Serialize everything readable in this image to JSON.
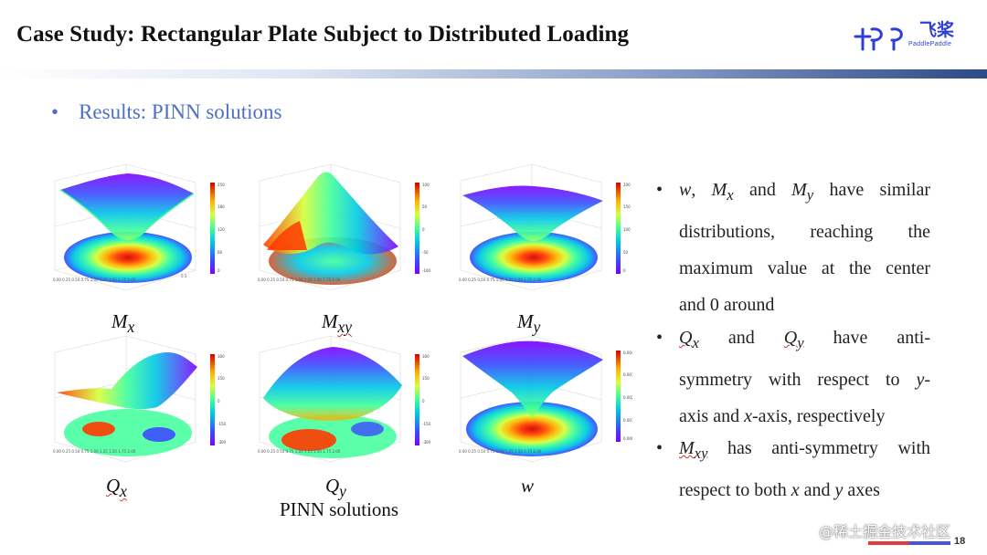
{
  "title": "Case Study: Rectangular Plate Subject to Distributed Loading",
  "logo": {
    "cn": "飞桨",
    "en": "PaddlePaddle"
  },
  "section": {
    "bullet": "•",
    "heading": "Results: PINN solutions"
  },
  "plots": [
    {
      "id": "Mx",
      "label": "M",
      "sub": "x"
    },
    {
      "id": "Mxy",
      "label": "M",
      "sub": "xy"
    },
    {
      "id": "My",
      "label": "M",
      "sub": "y"
    },
    {
      "id": "Qx",
      "label": "Q",
      "sub": "x"
    },
    {
      "id": "Qy",
      "label": "Q",
      "sub": "y"
    },
    {
      "id": "w",
      "label": "w",
      "sub": ""
    }
  ],
  "caption": "PINN solutions",
  "colors": {
    "accent": "#4b70c4",
    "brand": "#2f3fd6",
    "jet": [
      "#7f00ff",
      "#3b4cff",
      "#00c7e6",
      "#3fff9a",
      "#d6ff3a",
      "#ffb000",
      "#ff3b00",
      "#d40000"
    ]
  },
  "points": [
    {
      "bullet": "•",
      "lines": [
        [
          "",
          "w",
          ", ",
          "M",
          "x",
          " and ",
          "M",
          "y",
          " have similar"
        ],
        "distributions, reaching the",
        "maximum value at the center",
        "and 0 around"
      ]
    },
    {
      "bullet": "•"
    },
    {
      "bullet": "•"
    }
  ],
  "p1": {
    "l1": "have similar",
    "l2": "distributions, reaching the",
    "l3": "maximum value at the center",
    "l4": "and 0 around"
  },
  "p2": {
    "l1a": "and",
    "l1b": "have anti-",
    "l2": "symmetry with respect to",
    "l2b": "y-",
    "l3a": "axis and",
    "l3b": "x",
    "l3c": "-axis, respectively"
  },
  "p3": {
    "l1": "has anti-symmetry with",
    "l2a": "respect to both",
    "l2b": "x",
    "l2c": "and",
    "l2d": "y",
    "l2e": "axes"
  },
  "watermark": "@稀土掘金技术社区",
  "page_number": "18"
}
